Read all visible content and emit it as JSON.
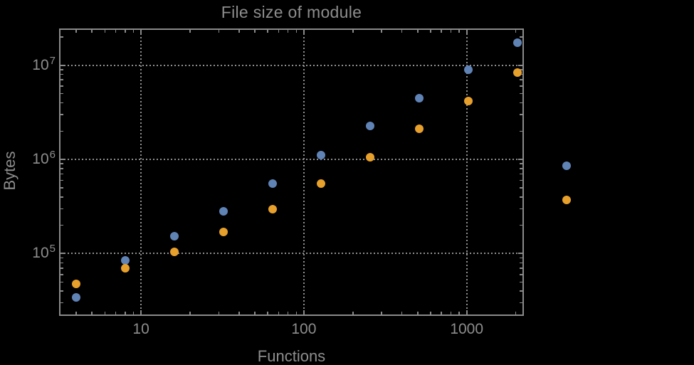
{
  "chart_data": {
    "type": "scatter",
    "title": "File size of module",
    "xlabel": "Functions",
    "ylabel": "Bytes",
    "x_scale": "log",
    "y_scale": "log",
    "grid": "dotted-at-decades",
    "legend": "none",
    "xlim": [
      3.14,
      2244
    ],
    "ylim": [
      21800,
      24600000
    ],
    "x_ticks": [
      10,
      100,
      1000
    ],
    "x_tick_labels": [
      "10",
      "100",
      "1000"
    ],
    "y_ticks": [
      100000,
      1000000,
      10000000
    ],
    "y_tick_labels": [
      {
        "base": "10",
        "exp": "5"
      },
      {
        "base": "10",
        "exp": "6"
      },
      {
        "base": "10",
        "exp": "7"
      }
    ],
    "x": [
      4,
      8,
      16,
      32,
      64,
      128,
      256,
      512,
      1024,
      2048,
      4096
    ],
    "series": [
      {
        "name": "blue-series",
        "color": "#6083B6",
        "values": [
          34000,
          85000,
          152000,
          283000,
          550000,
          1120000,
          2250000,
          4500000,
          8900000,
          17500000,
          850000
        ]
      },
      {
        "name": "orange-series",
        "color": "#E6A02B",
        "values": [
          48000,
          70000,
          105000,
          170000,
          295000,
          550000,
          1060000,
          2100000,
          4200000,
          8400000,
          370000
        ]
      }
    ],
    "colors": {
      "background": "#000000",
      "frame": "#8a8a8a",
      "grid": "#8f8f8f",
      "text": "#8d8d8d"
    }
  }
}
